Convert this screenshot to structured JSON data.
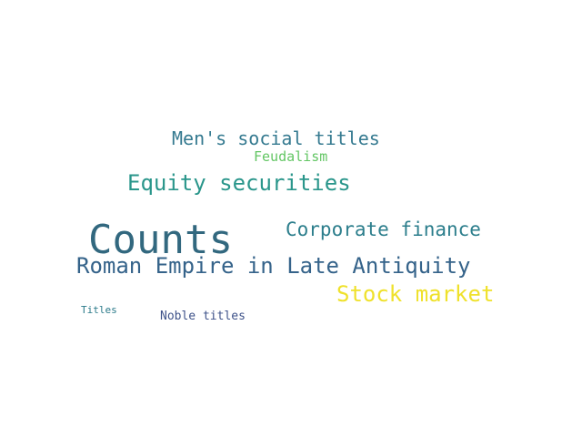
{
  "words": {
    "counts": {
      "text": "Counts",
      "color": "#32687f"
    },
    "roman": {
      "text": "Roman Empire in Late Antiquity",
      "color": "#35638a"
    },
    "equity": {
      "text": "Equity securities",
      "color": "#2a968b"
    },
    "corp": {
      "text": "Corporate finance",
      "color": "#2c7e8c"
    },
    "stock": {
      "text": "Stock market",
      "color": "#efe12b"
    },
    "mens": {
      "text": "Men's social titles",
      "color": "#357a90"
    },
    "feudal": {
      "text": "Feudalism",
      "color": "#63c664"
    },
    "noble": {
      "text": "Noble titles",
      "color": "#3e5289"
    },
    "titles": {
      "text": "Titles",
      "color": "#2b7a8a"
    }
  }
}
